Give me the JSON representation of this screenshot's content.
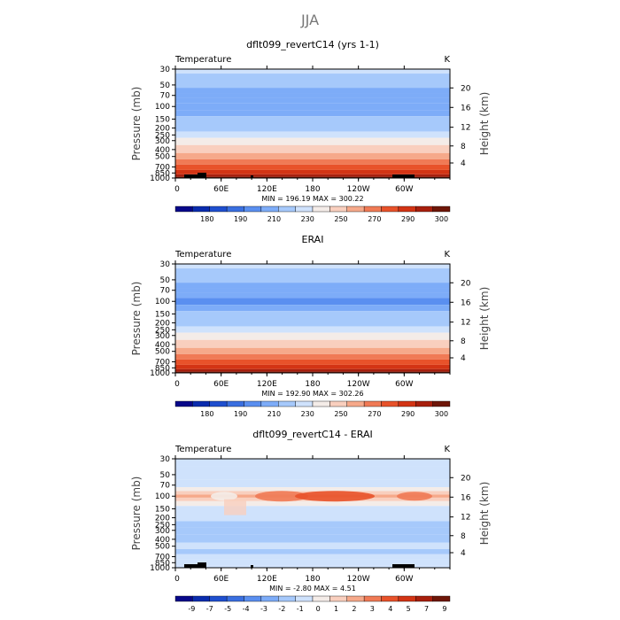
{
  "figure_title": "JJA",
  "colors": {
    "full_scale": [
      "#08088a",
      "#0a2cae",
      "#1f4fcf",
      "#3a6fe0",
      "#5a8ff0",
      "#7dacf8",
      "#a6c9fb",
      "#cfe2fc",
      "#f4ece8",
      "#f9cfbe",
      "#f6a98a",
      "#f07a55",
      "#e8522a",
      "#d33414",
      "#a81f0d",
      "#6e1608"
    ],
    "diff_scale": [
      "#08088a",
      "#0a2cae",
      "#1f4fcf",
      "#3a6fe0",
      "#5a8ff0",
      "#7dacf8",
      "#a6c9fb",
      "#cfe2fc",
      "#f4ece8",
      "#f9cfbe",
      "#f6a98a",
      "#f07a55",
      "#e8522a",
      "#d33414",
      "#a81f0d",
      "#6e1608"
    ],
    "terrain": "#000000"
  },
  "chart_data": [
    {
      "type": "heatmap",
      "title": "dflt099_revertC14 (yrs 1-1)",
      "left_label": "Temperature",
      "right_label": "K",
      "ylabel": "Pressure (mb)",
      "ylabel_right": "Height (km)",
      "xticks": [
        "0",
        "60E",
        "120E",
        "180",
        "120W",
        "60W"
      ],
      "yticks": [
        "30",
        "50",
        "70",
        "100",
        "150",
        "200",
        "250",
        "300",
        "400",
        "500",
        "700",
        "850",
        "1000"
      ],
      "yticks_right": [
        "20",
        "16",
        "12",
        "8",
        "4"
      ],
      "stats": "MIN = 196.19   MAX = 300.22",
      "colorbar_labels": [
        "180",
        "190",
        "210",
        "230",
        "250",
        "270",
        "290",
        "300"
      ],
      "levels": [
        175,
        180,
        185,
        190,
        200,
        210,
        220,
        230,
        240,
        250,
        260,
        270,
        280,
        290,
        295,
        300
      ],
      "layers_pressure": [
        30,
        40,
        50,
        60,
        70,
        80,
        100,
        125,
        150,
        200,
        250,
        300,
        400,
        500,
        600,
        700,
        850,
        925,
        1000
      ],
      "layers_value": [
        224,
        216,
        212,
        208,
        205,
        202,
        200,
        206,
        212,
        218,
        226,
        233,
        246,
        256,
        265,
        272,
        283,
        290,
        296
      ],
      "terrain": true
    },
    {
      "type": "heatmap",
      "title": "ERAI",
      "left_label": "Temperature",
      "right_label": "K",
      "ylabel": "Pressure (mb)",
      "ylabel_right": "Height (km)",
      "xticks": [
        "0",
        "60E",
        "120E",
        "180",
        "120W",
        "60W"
      ],
      "yticks": [
        "30",
        "50",
        "70",
        "100",
        "150",
        "200",
        "250",
        "300",
        "400",
        "500",
        "700",
        "850",
        "1000"
      ],
      "yticks_right": [
        "20",
        "16",
        "12",
        "8",
        "4"
      ],
      "stats": "MIN = 192.90   MAX = 302.26",
      "colorbar_labels": [
        "180",
        "190",
        "210",
        "230",
        "250",
        "270",
        "290",
        "300"
      ],
      "levels": [
        175,
        180,
        185,
        190,
        200,
        210,
        220,
        230,
        240,
        250,
        260,
        270,
        280,
        290,
        295,
        300
      ],
      "layers_pressure": [
        30,
        40,
        50,
        60,
        70,
        80,
        100,
        125,
        150,
        200,
        250,
        300,
        400,
        500,
        600,
        700,
        850,
        925,
        1000
      ],
      "layers_value": [
        224,
        216,
        211,
        207,
        203,
        200,
        198,
        205,
        211,
        217,
        225,
        232,
        245,
        256,
        265,
        272,
        284,
        291,
        297
      ],
      "terrain": false
    },
    {
      "type": "heatmap",
      "title": "dflt099_revertC14 - ERAI",
      "left_label": "Temperature",
      "right_label": "K",
      "ylabel": "Pressure (mb)",
      "ylabel_right": "Height (km)",
      "xticks": [
        "0",
        "60E",
        "120E",
        "180",
        "120W",
        "60W"
      ],
      "yticks": [
        "30",
        "50",
        "70",
        "100",
        "150",
        "200",
        "250",
        "300",
        "400",
        "500",
        "700",
        "850",
        "1000"
      ],
      "yticks_right": [
        "20",
        "16",
        "12",
        "8",
        "4"
      ],
      "stats": "MIN = -2.80   MAX = 4.51",
      "colorbar_labels": [
        "-9",
        "-7",
        "-5",
        "-4",
        "-3",
        "-2",
        "-1",
        "0",
        "1",
        "2",
        "3",
        "4",
        "5",
        "7",
        "9"
      ],
      "levels": [
        -9,
        -7,
        -5,
        -4,
        -3,
        -2,
        -1,
        0,
        1,
        2,
        3,
        4,
        5,
        7,
        9
      ],
      "layers_pressure": [
        30,
        50,
        70,
        80,
        90,
        100,
        110,
        125,
        150,
        200,
        250,
        300,
        400,
        500,
        600,
        700,
        850,
        1000
      ],
      "layers_value": [
        -0.5,
        -0.5,
        -0.5,
        0.5,
        1.5,
        2.5,
        1.5,
        0.5,
        -0.5,
        -0.5,
        -1.5,
        -1.5,
        -1.5,
        -0.5,
        -1.5,
        -0.5,
        -0.5,
        -0.5
      ],
      "terrain": true
    }
  ]
}
